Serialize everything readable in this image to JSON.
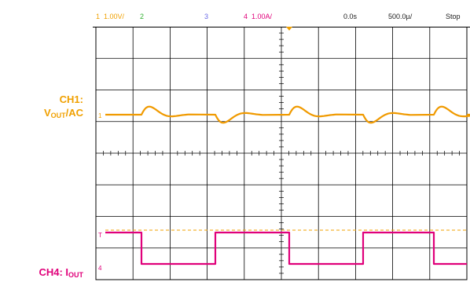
{
  "labels": {
    "ch1": {
      "prefix": "CH1:",
      "v": "V",
      "sub": "OUT",
      "suffix": "/AC"
    },
    "ch4": {
      "prefix": "CH4: I",
      "sub": "OUT"
    }
  },
  "status": {
    "ch1_num": "1",
    "ch1_scale": "1.00V/",
    "ch2_num": "2",
    "ch3_num": "3",
    "ch4_num": "4",
    "ch4_scale": "1.00A/",
    "time_offset": "0.0s",
    "timebase": "500.0µ/",
    "run_state": "Stop"
  },
  "markers": {
    "ch1_ground": "1",
    "ch4_ground": "4",
    "trigger_level": "T"
  },
  "colors": {
    "ch1": "#f0a000",
    "ch2": "#30b030",
    "ch3": "#6a6ae6",
    "ch4": "#e0007a",
    "grid": "#000000"
  }
}
